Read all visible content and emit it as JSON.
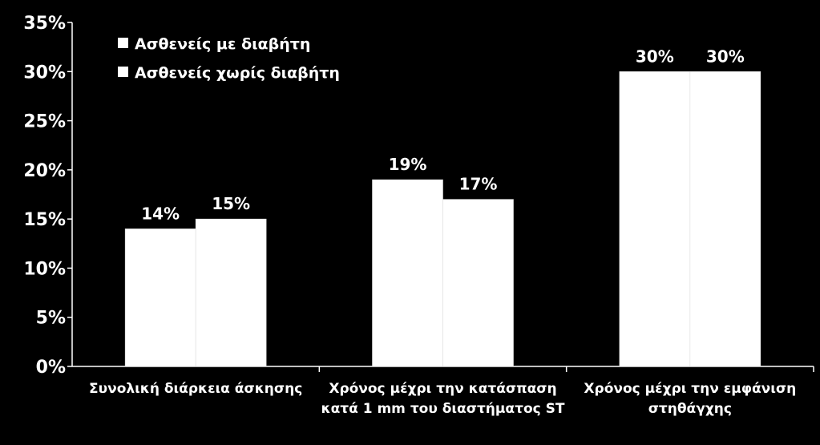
{
  "chart_data": {
    "type": "bar",
    "categories": [
      [
        "Συνολική διάρκεια άσκησης"
      ],
      [
        "Χρόνος μέχρι την κατάσπαση",
        "κατά 1 mm του διαστήματος ST"
      ],
      [
        "Χρόνος μέχρι την εμφάνιση",
        "στηθάγχης"
      ]
    ],
    "series": [
      {
        "name": "Ασθενείς με διαβήτη",
        "values": [
          14,
          19,
          30
        ],
        "labels": [
          "14%",
          "19%",
          "30%"
        ],
        "color": "#ffffff"
      },
      {
        "name": "Ασθενείς χωρίς διαβήτη",
        "values": [
          15,
          17,
          30
        ],
        "labels": [
          "15%",
          "17%",
          "30%"
        ],
        "color": "#ffffff"
      }
    ],
    "yticks": [
      "0%",
      "5%",
      "10%",
      "15%",
      "20%",
      "25%",
      "30%",
      "35%"
    ],
    "ylim": [
      0,
      35
    ],
    "grid": false,
    "legend_position": "top-left",
    "background": "#000000"
  }
}
